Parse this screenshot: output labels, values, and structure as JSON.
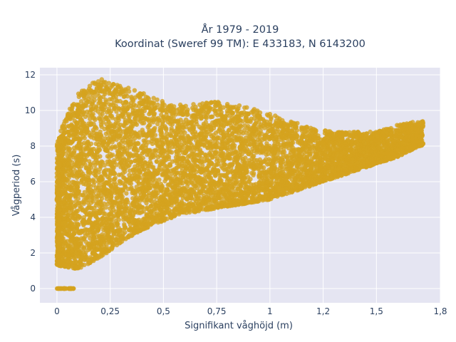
{
  "chart_data": {
    "type": "scatter",
    "title_lines": [
      "År 1979 - 2019",
      "Koordinat (Sweref 99 TM): E 433183, N 6143200"
    ],
    "xlabel": "Signifikant våghöjd (m)",
    "ylabel": "Vågperiod (s)",
    "xlim": [
      -0.08,
      1.8
    ],
    "ylim": [
      -0.8,
      12.4
    ],
    "x_ticks": [
      0,
      0.25,
      0.5,
      0.75,
      1,
      1.25,
      1.5,
      1.8
    ],
    "x_tick_labels": [
      "0",
      "0,25",
      "0,5",
      "0,75",
      "1",
      "1,2",
      "1,5",
      "1,8"
    ],
    "y_ticks": [
      0,
      2,
      4,
      6,
      8,
      10,
      12
    ],
    "y_tick_labels": [
      "0",
      "2",
      "4",
      "6",
      "8",
      "10",
      "12"
    ],
    "grid": true,
    "background": "#e5e5f2",
    "marker_color": "#d4a21e",
    "series": [
      {
        "description_of_envelope": "dense cloud of thousands of points",
        "envelope": {
          "lower": [
            [
              0.0,
              1.3
            ],
            [
              0.1,
              1.1
            ],
            [
              0.2,
              1.7
            ],
            [
              0.3,
              2.6
            ],
            [
              0.4,
              3.3
            ],
            [
              0.5,
              3.8
            ],
            [
              0.6,
              4.2
            ],
            [
              0.75,
              4.5
            ],
            [
              0.9,
              4.8
            ],
            [
              1.0,
              5.0
            ],
            [
              1.2,
              5.8
            ],
            [
              1.3,
              6.2
            ],
            [
              1.4,
              6.6
            ],
            [
              1.5,
              7.0
            ],
            [
              1.6,
              7.4
            ],
            [
              1.7,
              8.0
            ]
          ],
          "upper": [
            [
              0.0,
              8.2
            ],
            [
              0.05,
              10.0
            ],
            [
              0.1,
              11.0
            ],
            [
              0.2,
              11.8
            ],
            [
              0.3,
              11.4
            ],
            [
              0.4,
              11.0
            ],
            [
              0.5,
              10.5
            ],
            [
              0.6,
              10.3
            ],
            [
              0.75,
              10.5
            ],
            [
              0.9,
              10.2
            ],
            [
              1.0,
              9.8
            ],
            [
              1.2,
              9.0
            ],
            [
              1.3,
              8.8
            ],
            [
              1.5,
              8.8
            ],
            [
              1.6,
              9.2
            ],
            [
              1.7,
              9.4
            ]
          ]
        },
        "zero_period_x_range": [
          0.0,
          0.08
        ]
      }
    ]
  }
}
